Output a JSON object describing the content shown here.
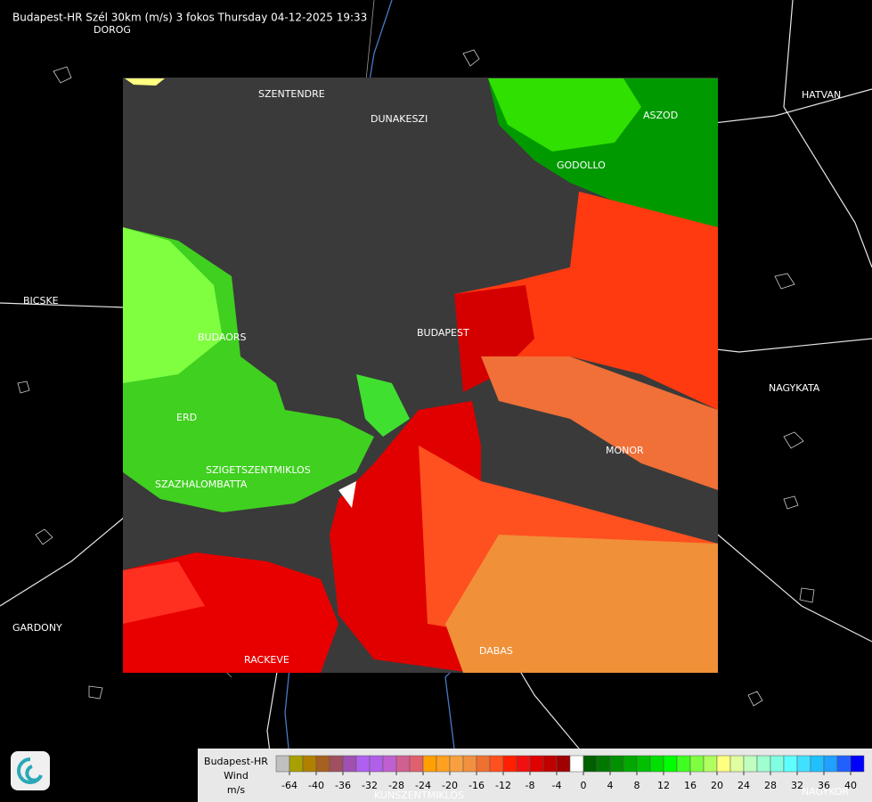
{
  "header": {
    "title": "Budapest-HR Szél 30km (m/s) 3 fokos Thursday 04-12-2025 19:33"
  },
  "places": [
    "DOROG",
    "SZENTENDRE",
    "DUNAKESZI",
    "HATVAN",
    "ASZOD",
    "GODOLLO",
    "BICSKE",
    "BUDAORS",
    "BUDAPEST",
    "NAGYKATA",
    "ERD",
    "MONOR",
    "SZIGETSZENTMIKLOS",
    "SZAZHALOMBATTA",
    "GARDONY",
    "RACKEVE",
    "DABAS",
    "KUNSZENTMIKLOS",
    "NAGYKOR"
  ],
  "legend": {
    "title": "Budapest-HR",
    "quantity": "Wind",
    "unit": "m/s",
    "colors": [
      "#c0c0c0",
      "#a8a000",
      "#b08000",
      "#a86020",
      "#a05060",
      "#a050b0",
      "#b060f0",
      "#b060e8",
      "#c060d0",
      "#d06090",
      "#e06070",
      "#ffa000",
      "#ffa020",
      "#f8a040",
      "#f09040",
      "#f07030",
      "#ff5020",
      "#ff2000",
      "#f01010",
      "#e00000",
      "#c00000",
      "#a00000",
      "#ffffff",
      "#006000",
      "#007800",
      "#009000",
      "#00a800",
      "#00c000",
      "#00e000",
      "#00ff00",
      "#40ff20",
      "#80ff40",
      "#b0ff60",
      "#ffff80",
      "#e0ffa0",
      "#c0ffc0",
      "#a0ffd0",
      "#80ffe0",
      "#60ffff",
      "#40e0ff",
      "#20c0ff",
      "#20a0ff",
      "#2060ff",
      "#0000ff"
    ],
    "ticks": [
      -64,
      -40,
      -36,
      -32,
      -28,
      -24,
      -20,
      -16,
      -12,
      -8,
      -4,
      0,
      4,
      8,
      12,
      16,
      20,
      24,
      28,
      32,
      36,
      40
    ]
  }
}
